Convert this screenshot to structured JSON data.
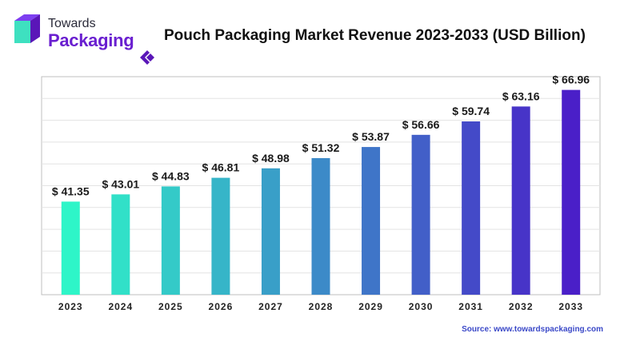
{
  "brand": {
    "top": "Towards",
    "bottom": "Packaging"
  },
  "source": "Source: www.towardspackaging.com",
  "colors": {
    "bar_start": "#2ef5c8",
    "bar_end": "#4a1fc8",
    "line": "#3fd9b8",
    "brand": "#6a1fd0"
  },
  "chart_data": {
    "type": "bar",
    "title": "Pouch Packaging Market Revenue 2023-2033 (USD Billion)",
    "categories": [
      "2023",
      "2024",
      "2025",
      "2026",
      "2027",
      "2028",
      "2029",
      "2030",
      "2031",
      "2032",
      "2033"
    ],
    "values": [
      41.35,
      43.01,
      44.83,
      46.81,
      48.98,
      51.32,
      53.87,
      56.66,
      59.74,
      63.16,
      66.96
    ],
    "value_labels": [
      "$ 41.35",
      "$ 43.01",
      "$ 44.83",
      "$ 46.81",
      "$ 48.98",
      "$ 51.32",
      "$ 53.87",
      "$ 56.66",
      "$ 59.74",
      "$ 63.16",
      "$ 66.96"
    ],
    "ylim": [
      20,
      70
    ],
    "grid": true,
    "xlabel": "",
    "ylabel": ""
  }
}
